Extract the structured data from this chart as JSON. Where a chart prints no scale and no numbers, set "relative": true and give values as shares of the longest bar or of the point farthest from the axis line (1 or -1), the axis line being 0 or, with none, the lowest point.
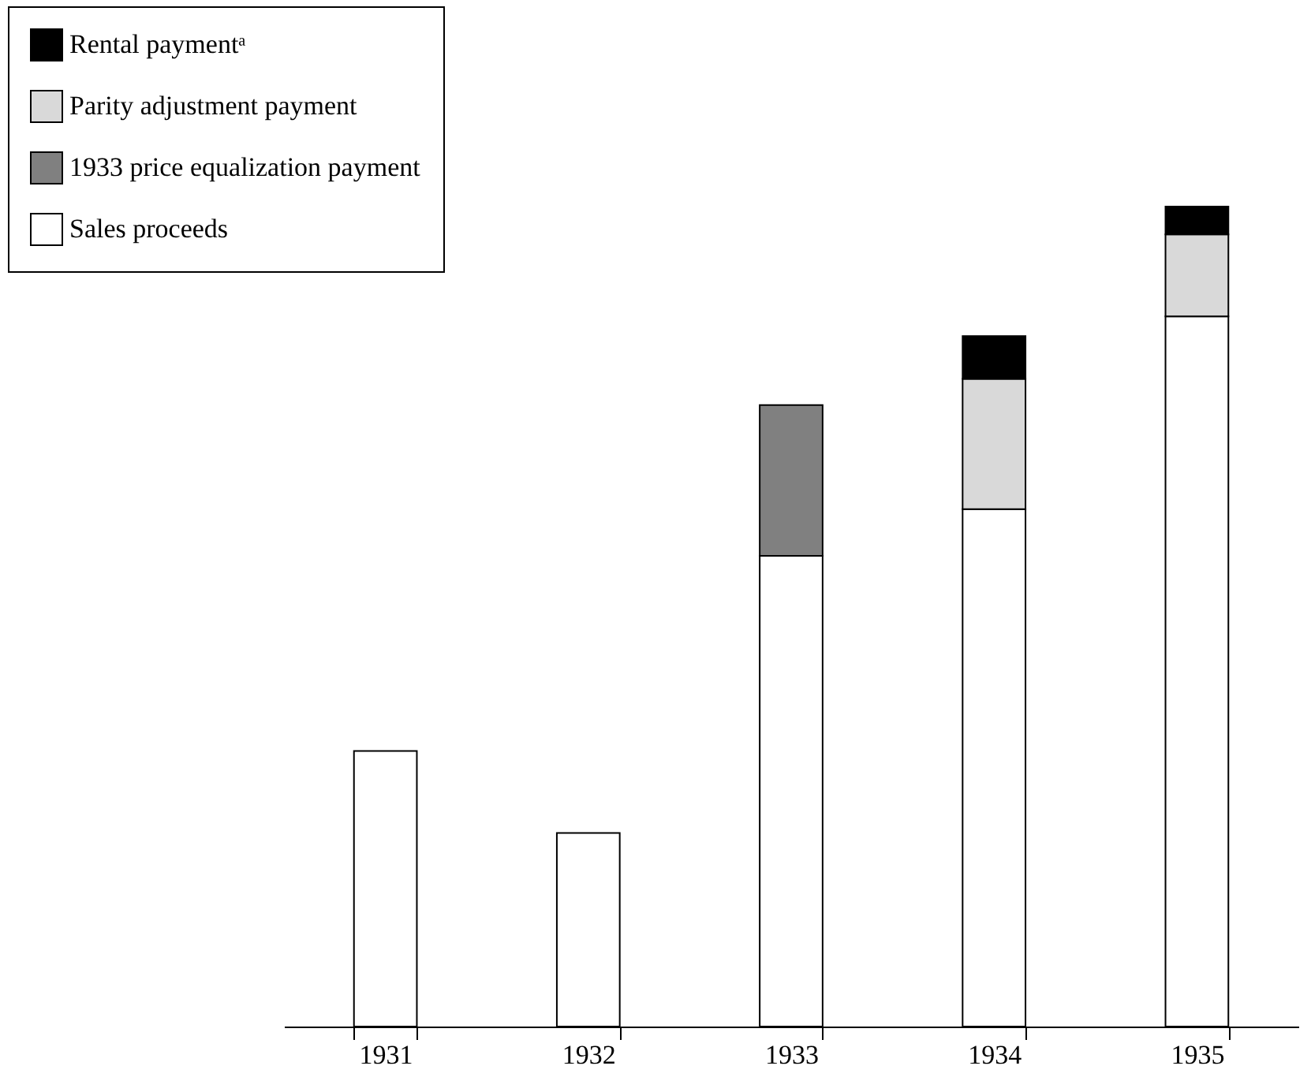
{
  "chart_data": {
    "type": "bar",
    "stacked": true,
    "relative": true,
    "legend": "top left",
    "grid": false,
    "categories": [
      "1931",
      "1932",
      "1933",
      "1934",
      "1935"
    ],
    "series": [
      {
        "name": "Sales proceeds",
        "color": "#ffffff",
        "values": [
          0.336,
          0.236,
          0.574,
          0.631,
          0.866
        ]
      },
      {
        "name": "1933 price equalization payment",
        "color": "#808080",
        "values": [
          null,
          null,
          0.184,
          null,
          null
        ]
      },
      {
        "name": "Parity adjustment payment",
        "color": "#d9d9d9",
        "values": [
          null,
          null,
          null,
          0.159,
          0.1
        ]
      },
      {
        "name": "Rental paymentᵃ",
        "color": "#000000",
        "values": [
          null,
          null,
          null,
          0.052,
          0.034
        ]
      }
    ]
  }
}
